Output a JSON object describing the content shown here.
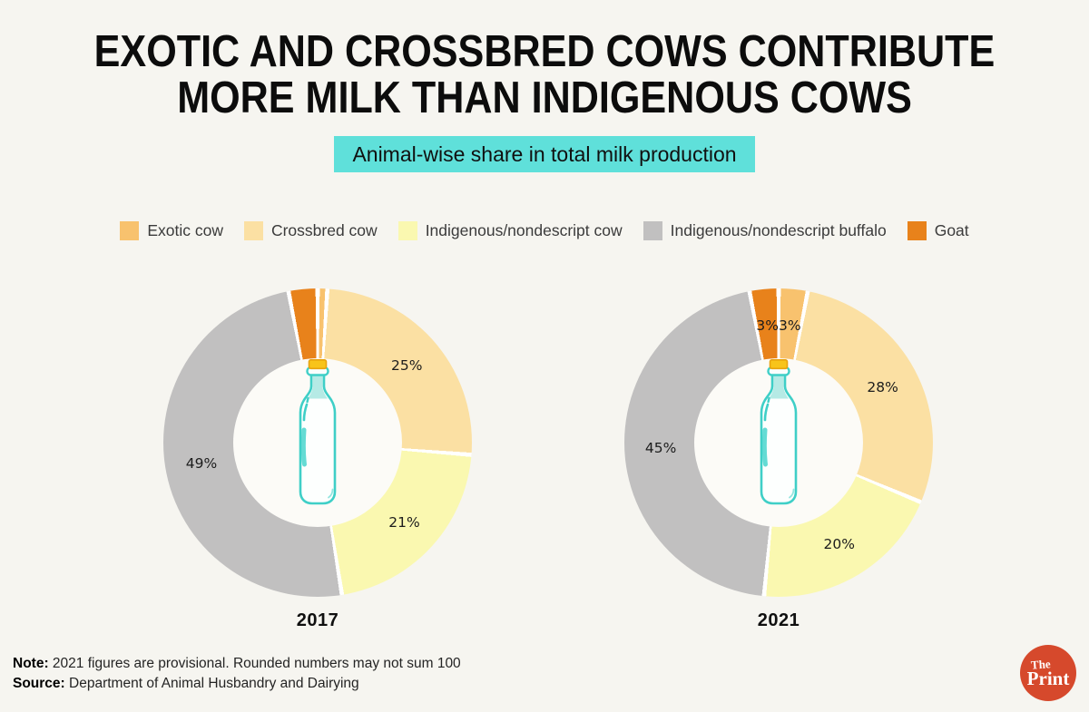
{
  "page": {
    "background_color": "#F6F5F0"
  },
  "header": {
    "title_line1": "EXOTIC AND CROSSBRED COWS CONTRIBUTE",
    "title_line2": "MORE MILK THAN INDIGENOUS COWS",
    "subtitle": "Animal-wise share in total milk production",
    "subtitle_highlight_color": "#5FE0DA"
  },
  "legend": {
    "items": [
      {
        "label": "Exotic cow",
        "color": "#F8C26E"
      },
      {
        "label": "Crossbred cow",
        "color": "#FBE0A3"
      },
      {
        "label": "Indigenous/nondescript cow",
        "color": "#FAF8B0"
      },
      {
        "label": "Indigenous/nondescript buffalo",
        "color": "#C1C0C0"
      },
      {
        "label": "Goat",
        "color": "#E8821B"
      }
    ]
  },
  "chart_data": {
    "type": "pie",
    "subtype": "donut",
    "title": "Animal-wise share in total milk production",
    "categories": [
      "Exotic cow",
      "Crossbred cow",
      "Indigenous/nondescript cow",
      "Indigenous/nondescript buffalo",
      "Goat"
    ],
    "colors": [
      "#F8C26E",
      "#FBE0A3",
      "#FAF8B0",
      "#C1C0C0",
      "#E8821B"
    ],
    "slice_gap_color": "#FFFFFF",
    "center_icon": "milk-bottle",
    "charts": [
      {
        "year": "2017",
        "values": [
          1,
          25,
          21,
          49,
          3
        ],
        "labels": [
          "",
          "25%",
          "21%",
          "49%",
          ""
        ]
      },
      {
        "year": "2021",
        "values": [
          3,
          28,
          20,
          45,
          3
        ],
        "labels": [
          "3%",
          "28%",
          "20%",
          "45%",
          "3%"
        ]
      }
    ]
  },
  "footer": {
    "note_label": "Note:",
    "note_text": "2021 figures are provisional. Rounded numbers may not sum 100",
    "source_label": "Source:",
    "source_text": "Department of Animal Husbandry and Dairying"
  },
  "logo": {
    "line1": "The",
    "line2": "Print",
    "background_color": "#D6492C"
  }
}
